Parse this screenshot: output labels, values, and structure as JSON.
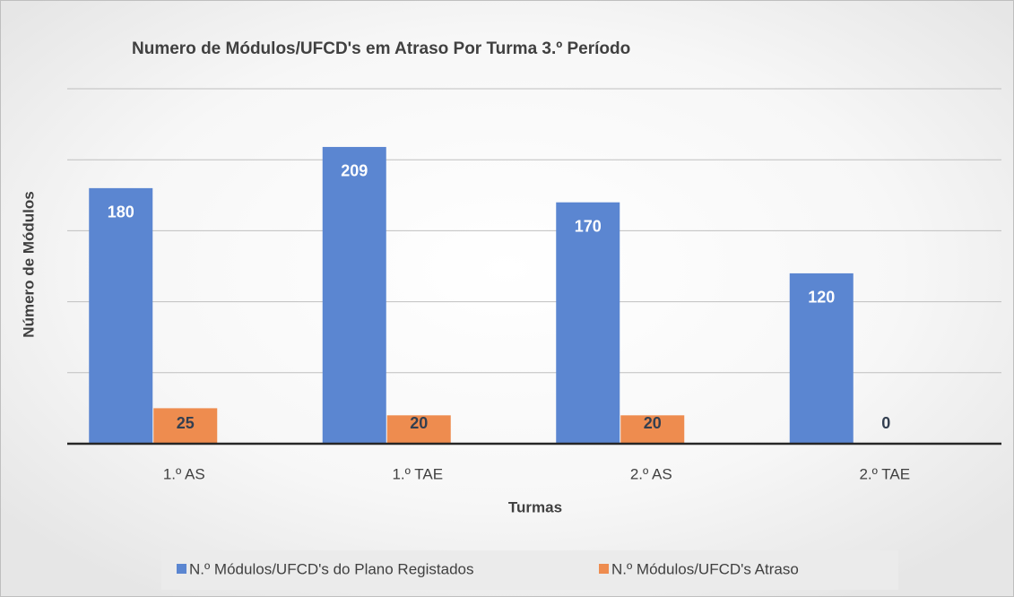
{
  "chart_data": {
    "type": "bar",
    "title": "Numero de Módulos/UFCD's em Atraso Por Turma 3.º Período",
    "x_label": "Turmas",
    "y_label": "Número de Módulos",
    "categories": [
      "1.º AS",
      "1.º TAE",
      "2.º AS",
      "2.º TAE"
    ],
    "series": [
      {
        "name": "N.º Módulos/UFCD's do Plano Registados",
        "color": "#5B86D1",
        "values": [
          180,
          209,
          170,
          120
        ]
      },
      {
        "name": "N.º Módulos/UFCD's Atraso",
        "color": "#EE8C4F",
        "values": [
          25,
          20,
          20,
          0
        ]
      }
    ],
    "ylim": [
      0,
      250
    ],
    "yticks": [
      0,
      50,
      100,
      150,
      200,
      250
    ],
    "grid": true,
    "legend": "bottom"
  }
}
